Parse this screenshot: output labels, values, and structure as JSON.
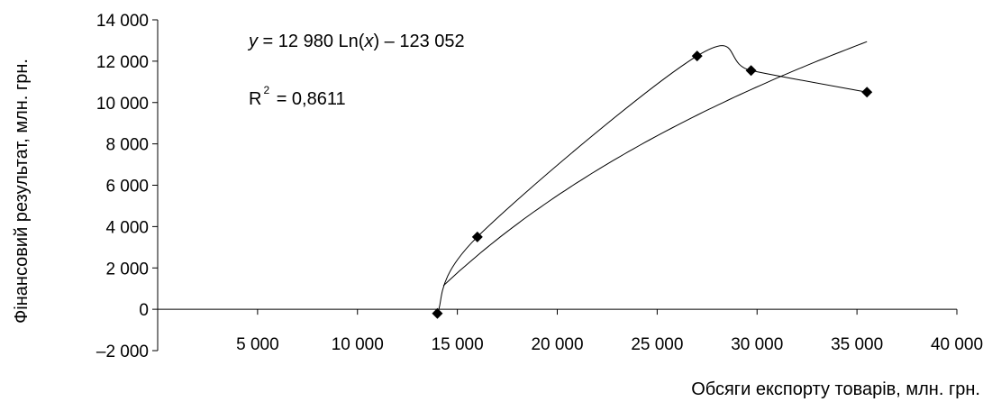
{
  "chart_data": {
    "type": "scatter",
    "xlabel": "Обсяги експорту товарів, млн. грн.",
    "ylabel": "Фінансовий результат, млн. грн.",
    "xlim": [
      0,
      40000
    ],
    "ylim": [
      -2000,
      14000
    ],
    "x_ticks": [
      5000,
      10000,
      15000,
      20000,
      25000,
      30000,
      35000,
      40000
    ],
    "x_tick_labels": [
      "5 000",
      "10 000",
      "15 000",
      "20 000",
      "25 000",
      "30 000",
      "35 000",
      "40 000"
    ],
    "y_ticks": [
      -2000,
      0,
      2000,
      4000,
      6000,
      8000,
      10000,
      12000,
      14000
    ],
    "y_tick_labels": [
      "–2 000",
      "0",
      "2 000",
      "4 000",
      "6 000",
      "8 000",
      "10 000",
      "12 000",
      "14 000"
    ],
    "points": [
      {
        "x": 14000,
        "y": -200
      },
      {
        "x": 16000,
        "y": 3500
      },
      {
        "x": 27000,
        "y": 12250
      },
      {
        "x": 29700,
        "y": 11550
      },
      {
        "x": 35500,
        "y": 10500
      }
    ],
    "trendline": {
      "type": "logarithmic",
      "a": 12980,
      "b": -123052,
      "x_range": [
        14300,
        35500
      ],
      "equation_text": {
        "y": "y",
        "mid": " = 12 980 Ln(",
        "x": "x",
        "end": ") – 123 052"
      },
      "r2_text": {
        "r": "R",
        "sup": "2",
        "value": " = 0,8611"
      }
    },
    "grid": false,
    "legend": "none",
    "colors": {
      "line": "#000000",
      "marker": "#000000"
    }
  }
}
